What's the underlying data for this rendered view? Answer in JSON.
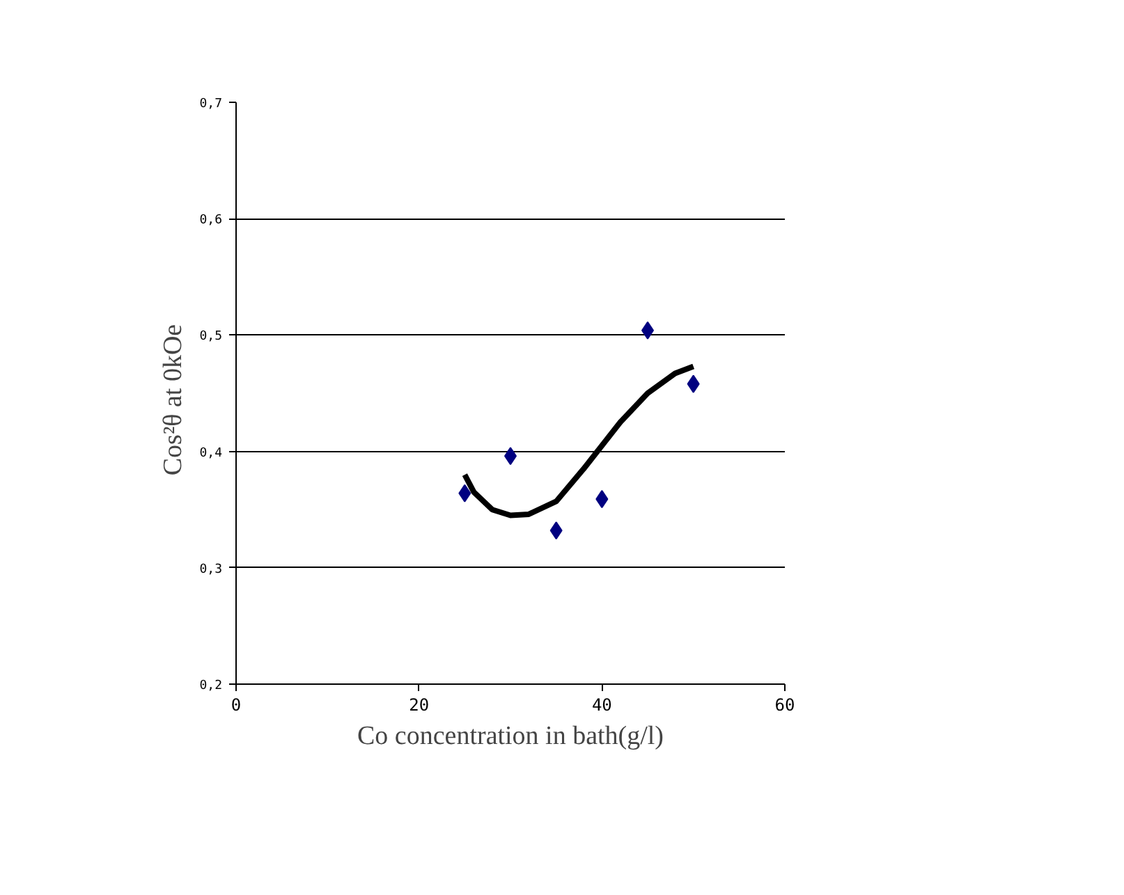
{
  "chart_data": {
    "type": "scatter",
    "xlabel": "Co concentration in bath(g/l)",
    "ylabel": "Cos²θ  at  0kOe",
    "xlim": [
      0,
      60
    ],
    "ylim": [
      0.2,
      0.7
    ],
    "xticks": [
      0,
      20,
      40,
      60
    ],
    "yticks": [
      {
        "value": 0.2,
        "label": "0,2"
      },
      {
        "value": 0.3,
        "label": "0,3"
      },
      {
        "value": 0.4,
        "label": "0,4"
      },
      {
        "value": 0.5,
        "label": "0,5"
      },
      {
        "value": 0.6,
        "label": "0,6"
      },
      {
        "value": 0.7,
        "label": "0,7"
      }
    ],
    "grid": "y",
    "series": [
      {
        "marker": "diamond",
        "color": "#000080",
        "x": [
          25,
          30,
          35,
          40,
          45,
          50
        ],
        "values": [
          0.364,
          0.396,
          0.332,
          0.359,
          0.504,
          0.458
        ]
      },
      {
        "type": "line",
        "marker": "none",
        "line_style": "solid",
        "color": "#000000",
        "x": [
          25,
          26,
          28,
          30,
          32,
          35,
          38,
          40,
          42,
          45,
          48,
          50
        ],
        "values": [
          0.38,
          0.365,
          0.35,
          0.345,
          0.346,
          0.357,
          0.385,
          0.405,
          0.425,
          0.45,
          0.467,
          0.473
        ]
      }
    ]
  }
}
